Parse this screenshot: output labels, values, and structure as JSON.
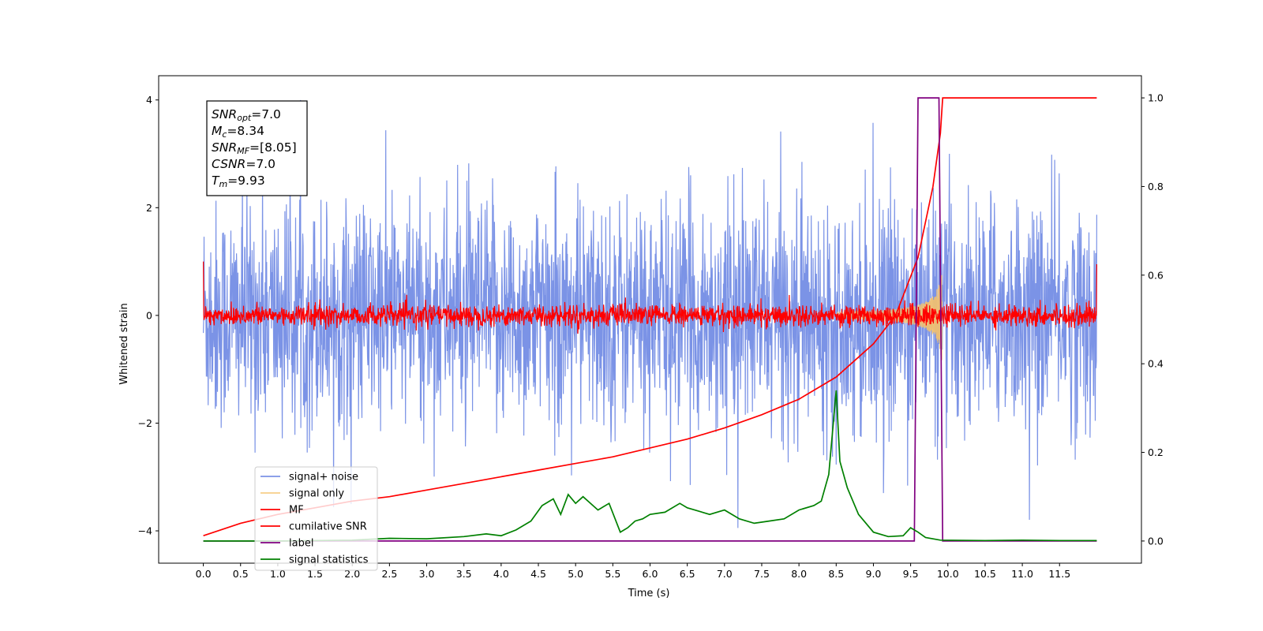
{
  "chart_data": {
    "type": "line",
    "xlabel": "Time (s)",
    "ylabel": "Whitened strain",
    "xlim": [
      -0.6,
      12.6
    ],
    "ylim_left": [
      -4.6,
      4.45
    ],
    "ylim_right": [
      -0.05,
      1.05
    ],
    "x_ticks": [
      "0.0",
      "0.5",
      "1.0",
      "1.5",
      "2.0",
      "2.5",
      "3.0",
      "3.5",
      "4.0",
      "4.5",
      "5.0",
      "5.5",
      "6.0",
      "6.5",
      "7.0",
      "7.5",
      "8.0",
      "8.5",
      "9.0",
      "9.5",
      "10.0",
      "10.5",
      "11.0",
      "11.5"
    ],
    "y_ticks_left": [
      "−4",
      "−2",
      "0",
      "2",
      "4"
    ],
    "y_ticks_right": [
      "0.0",
      "0.2",
      "0.4",
      "0.6",
      "0.8",
      "1.0"
    ],
    "grid": false,
    "legend_position": "lower-left",
    "annotation": {
      "lines": [
        {
          "base": "SNR",
          "sub": "opt",
          "value": "=7.0"
        },
        {
          "base": "M",
          "sub": "c",
          "value": "=8.34"
        },
        {
          "base": "SNR",
          "sub": "MF",
          "value": "=[8.05]"
        },
        {
          "base": "CSNR",
          "sub": "",
          "value": "=7.0"
        },
        {
          "base": "T",
          "sub": "m",
          "value": "=9.93"
        }
      ]
    },
    "series": [
      {
        "name": "signal+ noise",
        "color": "#7b93e6",
        "axis": "left",
        "style": "noise",
        "x_range": [
          0.0,
          12.0
        ],
        "amplitude_std": 1.0
      },
      {
        "name": "signal only",
        "color": "#f5c26b",
        "axis": "left",
        "style": "chirp",
        "x_range": [
          8.5,
          9.93
        ],
        "peak_amplitude": 0.95
      },
      {
        "name": "MF",
        "color": "#ff0000",
        "axis": "left",
        "style": "noise",
        "x_range": [
          0.0,
          12.0
        ],
        "amplitude_std": 0.1
      },
      {
        "name": "cumilative SNR",
        "color": "#ff0000",
        "axis": "right",
        "x": [
          0.0,
          0.5,
          1.0,
          1.5,
          2.0,
          2.5,
          3.0,
          3.5,
          4.0,
          4.5,
          5.0,
          5.5,
          6.0,
          6.5,
          7.0,
          7.5,
          8.0,
          8.5,
          9.0,
          9.3,
          9.6,
          9.8,
          9.9,
          9.93,
          10.5,
          11.0,
          11.5,
          12.0
        ],
        "y": [
          0.012,
          0.04,
          0.06,
          0.075,
          0.09,
          0.1,
          0.115,
          0.13,
          0.145,
          0.16,
          0.175,
          0.19,
          0.21,
          0.23,
          0.255,
          0.285,
          0.32,
          0.37,
          0.445,
          0.51,
          0.64,
          0.8,
          0.92,
          1.0,
          1.0,
          1.0,
          1.0,
          1.0
        ]
      },
      {
        "name": "label",
        "color": "#800080",
        "axis": "right",
        "x": [
          0.0,
          9.55,
          9.6,
          9.88,
          9.93,
          12.0
        ],
        "y": [
          0.0,
          0.0,
          1.0,
          1.0,
          0.0,
          0.0
        ]
      },
      {
        "name": "signal statistics",
        "color": "#008000",
        "axis": "right",
        "x": [
          0.0,
          1.0,
          2.0,
          2.5,
          3.0,
          3.5,
          3.8,
          4.0,
          4.2,
          4.4,
          4.55,
          4.7,
          4.8,
          4.9,
          5.0,
          5.1,
          5.3,
          5.45,
          5.6,
          5.7,
          5.8,
          5.9,
          6.0,
          6.2,
          6.4,
          6.5,
          6.6,
          6.8,
          7.0,
          7.2,
          7.4,
          7.6,
          7.8,
          8.0,
          8.2,
          8.3,
          8.4,
          8.5,
          8.55,
          8.65,
          8.8,
          9.0,
          9.2,
          9.4,
          9.5,
          9.6,
          9.7,
          9.9,
          10.5,
          11.0,
          11.5,
          12.0
        ],
        "y": [
          0.0,
          0.0,
          0.002,
          0.006,
          0.005,
          0.01,
          0.016,
          0.012,
          0.025,
          0.045,
          0.08,
          0.095,
          0.06,
          0.105,
          0.085,
          0.1,
          0.07,
          0.085,
          0.02,
          0.03,
          0.045,
          0.05,
          0.06,
          0.065,
          0.085,
          0.075,
          0.07,
          0.06,
          0.07,
          0.05,
          0.04,
          0.045,
          0.05,
          0.07,
          0.08,
          0.09,
          0.15,
          0.34,
          0.18,
          0.12,
          0.06,
          0.02,
          0.01,
          0.012,
          0.03,
          0.02,
          0.008,
          0.002,
          0.001,
          0.002,
          0.001,
          0.001
        ]
      }
    ]
  }
}
